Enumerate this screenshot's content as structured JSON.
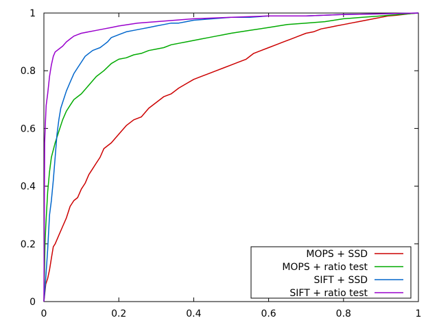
{
  "chart_data": {
    "type": "line",
    "xlim": [
      0,
      1
    ],
    "ylim": [
      0,
      1
    ],
    "xticks": [
      {
        "value": 0,
        "label": "0"
      },
      {
        "value": 0.2,
        "label": "0.2"
      },
      {
        "value": 0.4,
        "label": "0.4"
      },
      {
        "value": 0.6,
        "label": "0.6"
      },
      {
        "value": 0.8,
        "label": "0.8"
      },
      {
        "value": 1,
        "label": "1"
      }
    ],
    "yticks": [
      {
        "value": 0,
        "label": "0"
      },
      {
        "value": 0.2,
        "label": "0.2"
      },
      {
        "value": 0.4,
        "label": "0.4"
      },
      {
        "value": 0.6,
        "label": "0.6"
      },
      {
        "value": 0.8,
        "label": "0.8"
      },
      {
        "value": 1,
        "label": "1"
      }
    ],
    "grid": false,
    "legend_position": "bottom-right",
    "series": [
      {
        "name": "MOPS + SSD",
        "color": "#cc0000",
        "points": [
          [
            0,
            0
          ],
          [
            0.005,
            0.06
          ],
          [
            0.01,
            0.08
          ],
          [
            0.015,
            0.11
          ],
          [
            0.02,
            0.15
          ],
          [
            0.025,
            0.19
          ],
          [
            0.03,
            0.2
          ],
          [
            0.04,
            0.23
          ],
          [
            0.05,
            0.26
          ],
          [
            0.06,
            0.29
          ],
          [
            0.07,
            0.33
          ],
          [
            0.08,
            0.35
          ],
          [
            0.09,
            0.36
          ],
          [
            0.1,
            0.39
          ],
          [
            0.11,
            0.41
          ],
          [
            0.12,
            0.44
          ],
          [
            0.13,
            0.46
          ],
          [
            0.14,
            0.48
          ],
          [
            0.15,
            0.5
          ],
          [
            0.16,
            0.53
          ],
          [
            0.18,
            0.55
          ],
          [
            0.2,
            0.58
          ],
          [
            0.22,
            0.61
          ],
          [
            0.24,
            0.63
          ],
          [
            0.26,
            0.64
          ],
          [
            0.28,
            0.67
          ],
          [
            0.3,
            0.69
          ],
          [
            0.32,
            0.71
          ],
          [
            0.34,
            0.72
          ],
          [
            0.36,
            0.74
          ],
          [
            0.38,
            0.755
          ],
          [
            0.4,
            0.77
          ],
          [
            0.42,
            0.78
          ],
          [
            0.44,
            0.79
          ],
          [
            0.46,
            0.8
          ],
          [
            0.48,
            0.81
          ],
          [
            0.5,
            0.82
          ],
          [
            0.52,
            0.83
          ],
          [
            0.54,
            0.84
          ],
          [
            0.56,
            0.86
          ],
          [
            0.58,
            0.87
          ],
          [
            0.6,
            0.88
          ],
          [
            0.62,
            0.89
          ],
          [
            0.64,
            0.9
          ],
          [
            0.66,
            0.91
          ],
          [
            0.68,
            0.92
          ],
          [
            0.7,
            0.93
          ],
          [
            0.72,
            0.935
          ],
          [
            0.74,
            0.945
          ],
          [
            0.76,
            0.95
          ],
          [
            0.78,
            0.955
          ],
          [
            0.8,
            0.96
          ],
          [
            0.82,
            0.965
          ],
          [
            0.84,
            0.97
          ],
          [
            0.86,
            0.975
          ],
          [
            0.88,
            0.98
          ],
          [
            0.9,
            0.985
          ],
          [
            0.92,
            0.99
          ],
          [
            0.94,
            0.992
          ],
          [
            0.96,
            0.995
          ],
          [
            0.98,
            0.998
          ],
          [
            1,
            1
          ]
        ]
      },
      {
        "name": "MOPS + ratio test",
        "color": "#00aa00",
        "points": [
          [
            0,
            0
          ],
          [
            0.003,
            0.2
          ],
          [
            0.005,
            0.26
          ],
          [
            0.01,
            0.38
          ],
          [
            0.015,
            0.45
          ],
          [
            0.02,
            0.5
          ],
          [
            0.03,
            0.55
          ],
          [
            0.04,
            0.59
          ],
          [
            0.05,
            0.63
          ],
          [
            0.06,
            0.66
          ],
          [
            0.07,
            0.68
          ],
          [
            0.08,
            0.7
          ],
          [
            0.09,
            0.71
          ],
          [
            0.1,
            0.72
          ],
          [
            0.12,
            0.75
          ],
          [
            0.14,
            0.78
          ],
          [
            0.16,
            0.8
          ],
          [
            0.18,
            0.825
          ],
          [
            0.2,
            0.84
          ],
          [
            0.22,
            0.845
          ],
          [
            0.24,
            0.855
          ],
          [
            0.26,
            0.86
          ],
          [
            0.28,
            0.87
          ],
          [
            0.3,
            0.875
          ],
          [
            0.32,
            0.88
          ],
          [
            0.34,
            0.89
          ],
          [
            0.36,
            0.895
          ],
          [
            0.38,
            0.9
          ],
          [
            0.4,
            0.905
          ],
          [
            0.42,
            0.91
          ],
          [
            0.44,
            0.915
          ],
          [
            0.46,
            0.92
          ],
          [
            0.48,
            0.925
          ],
          [
            0.5,
            0.93
          ],
          [
            0.55,
            0.94
          ],
          [
            0.6,
            0.95
          ],
          [
            0.65,
            0.96
          ],
          [
            0.7,
            0.965
          ],
          [
            0.75,
            0.97
          ],
          [
            0.8,
            0.98
          ],
          [
            0.85,
            0.985
          ],
          [
            0.9,
            0.99
          ],
          [
            0.95,
            0.995
          ],
          [
            1,
            1
          ]
        ]
      },
      {
        "name": "SIFT + SSD",
        "color": "#0066cc",
        "points": [
          [
            0,
            0
          ],
          [
            0.005,
            0.08
          ],
          [
            0.01,
            0.18
          ],
          [
            0.015,
            0.3
          ],
          [
            0.02,
            0.35
          ],
          [
            0.025,
            0.42
          ],
          [
            0.03,
            0.5
          ],
          [
            0.035,
            0.58
          ],
          [
            0.04,
            0.63
          ],
          [
            0.045,
            0.67
          ],
          [
            0.05,
            0.69
          ],
          [
            0.06,
            0.73
          ],
          [
            0.07,
            0.76
          ],
          [
            0.08,
            0.79
          ],
          [
            0.09,
            0.81
          ],
          [
            0.1,
            0.83
          ],
          [
            0.11,
            0.85
          ],
          [
            0.12,
            0.86
          ],
          [
            0.13,
            0.87
          ],
          [
            0.14,
            0.875
          ],
          [
            0.15,
            0.88
          ],
          [
            0.16,
            0.89
          ],
          [
            0.17,
            0.9
          ],
          [
            0.18,
            0.915
          ],
          [
            0.2,
            0.925
          ],
          [
            0.22,
            0.935
          ],
          [
            0.24,
            0.94
          ],
          [
            0.26,
            0.945
          ],
          [
            0.28,
            0.95
          ],
          [
            0.3,
            0.955
          ],
          [
            0.32,
            0.96
          ],
          [
            0.34,
            0.965
          ],
          [
            0.36,
            0.965
          ],
          [
            0.38,
            0.97
          ],
          [
            0.4,
            0.975
          ],
          [
            0.45,
            0.98
          ],
          [
            0.5,
            0.985
          ],
          [
            0.55,
            0.985
          ],
          [
            0.6,
            0.99
          ],
          [
            0.7,
            0.99
          ],
          [
            0.8,
            0.995
          ],
          [
            0.9,
            0.997
          ],
          [
            1,
            1
          ]
        ]
      },
      {
        "name": "SIFT + ratio test",
        "color": "#9900cc",
        "points": [
          [
            0,
            0
          ],
          [
            0.002,
            0.55
          ],
          [
            0.004,
            0.62
          ],
          [
            0.006,
            0.68
          ],
          [
            0.008,
            0.7
          ],
          [
            0.01,
            0.72
          ],
          [
            0.015,
            0.78
          ],
          [
            0.02,
            0.82
          ],
          [
            0.025,
            0.85
          ],
          [
            0.03,
            0.865
          ],
          [
            0.04,
            0.875
          ],
          [
            0.05,
            0.885
          ],
          [
            0.06,
            0.9
          ],
          [
            0.07,
            0.91
          ],
          [
            0.08,
            0.92
          ],
          [
            0.09,
            0.925
          ],
          [
            0.1,
            0.93
          ],
          [
            0.12,
            0.935
          ],
          [
            0.14,
            0.94
          ],
          [
            0.16,
            0.945
          ],
          [
            0.18,
            0.95
          ],
          [
            0.2,
            0.955
          ],
          [
            0.25,
            0.965
          ],
          [
            0.3,
            0.97
          ],
          [
            0.35,
            0.975
          ],
          [
            0.4,
            0.98
          ],
          [
            0.5,
            0.985
          ],
          [
            0.6,
            0.99
          ],
          [
            0.7,
            0.99
          ],
          [
            0.8,
            0.995
          ],
          [
            0.9,
            0.997
          ],
          [
            1,
            1
          ]
        ]
      }
    ]
  }
}
